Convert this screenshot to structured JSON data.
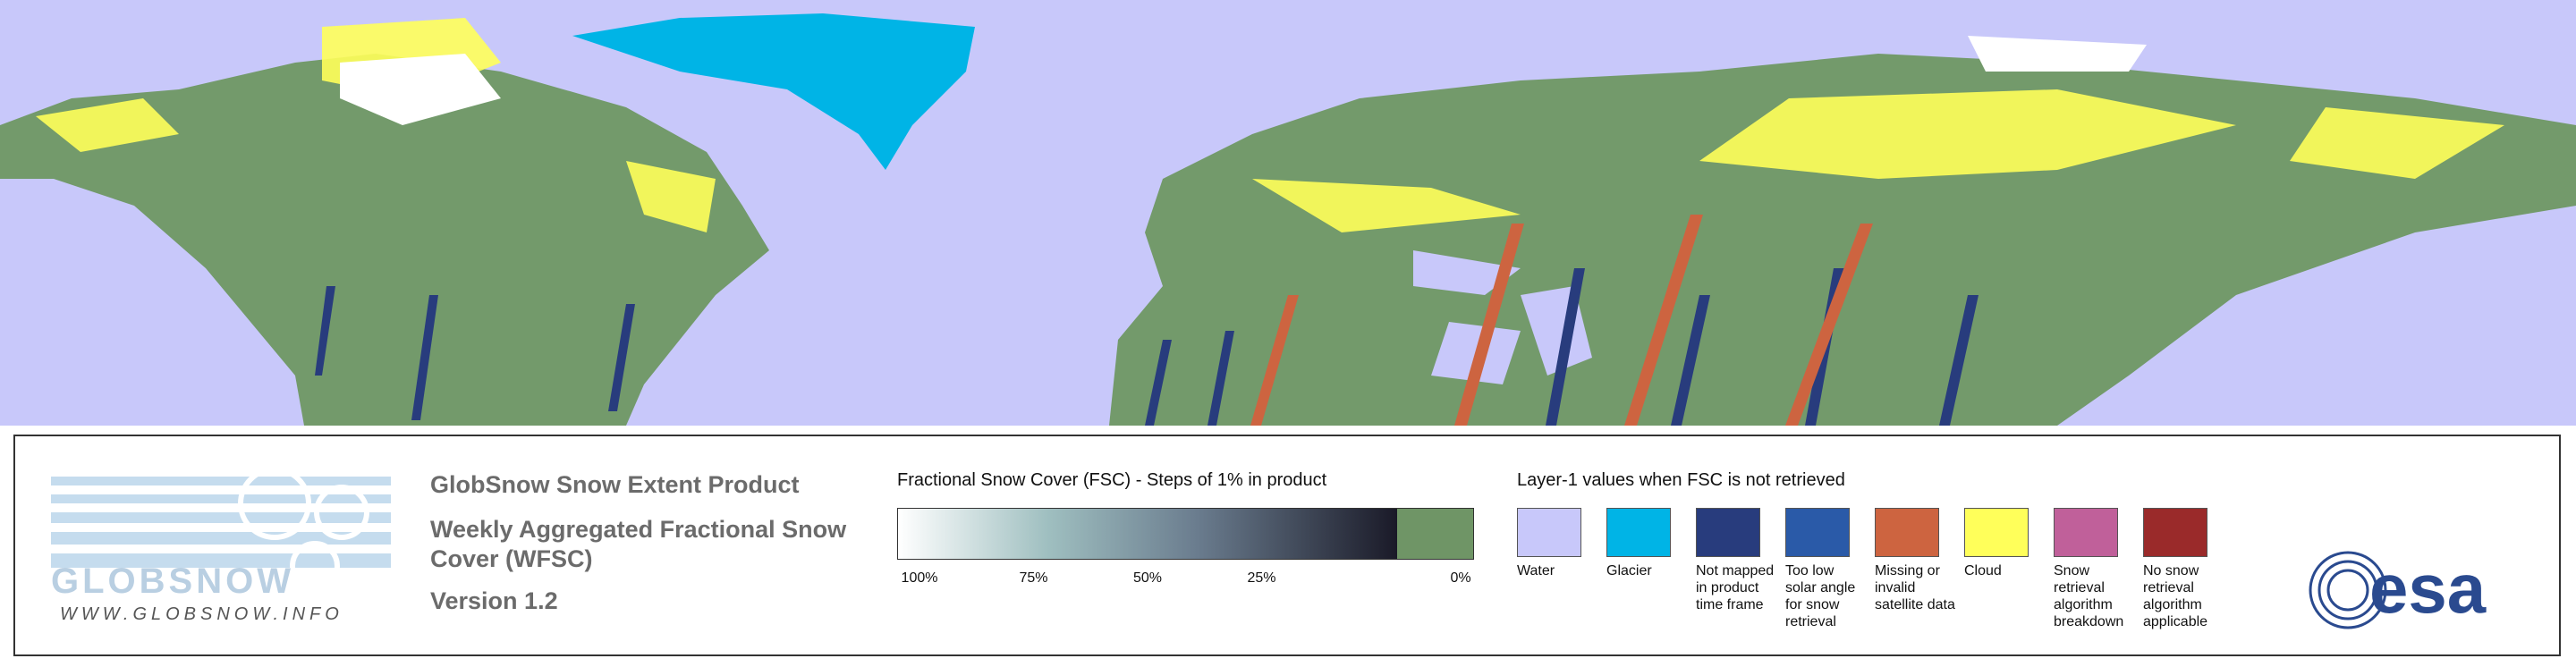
{
  "logo": {
    "brand": "GLOBSNOW",
    "url": "WWW.GLOBSNOW.INFO"
  },
  "product": {
    "title": "GlobSnow Snow Extent Product",
    "subtitle": "Weekly Aggregated Fractional Snow Cover (WFSC)",
    "version": "Version 1.2"
  },
  "fsc_legend": {
    "title": "Fractional Snow Cover (FSC) - Steps of 1% in product",
    "ticks": [
      "100%",
      "75%",
      "50%",
      "25%",
      "0%"
    ],
    "snow_free_color": "#6f9566"
  },
  "layer1_legend": {
    "title": "Layer-1 values when FSC is not retrieved",
    "items": [
      {
        "label": "Water",
        "color": "#c8c8fa"
      },
      {
        "label": "Glacier",
        "color": "#00b4e6"
      },
      {
        "label": "Not mapped in product time frame",
        "color": "#283c7d"
      },
      {
        "label": "Too low solar angle for snow retrieval",
        "color": "#2a5aa8"
      },
      {
        "label": "Missing or invalid satellite data",
        "color": "#cd6440"
      },
      {
        "label": "Cloud",
        "color": "#ffff5a"
      },
      {
        "label": "Snow retrieval algorithm breakdown",
        "color": "#c0609a"
      },
      {
        "label": "No snow retrieval algorithm applicable",
        "color": "#9a2a2a"
      }
    ]
  },
  "esa_logo": "esa"
}
